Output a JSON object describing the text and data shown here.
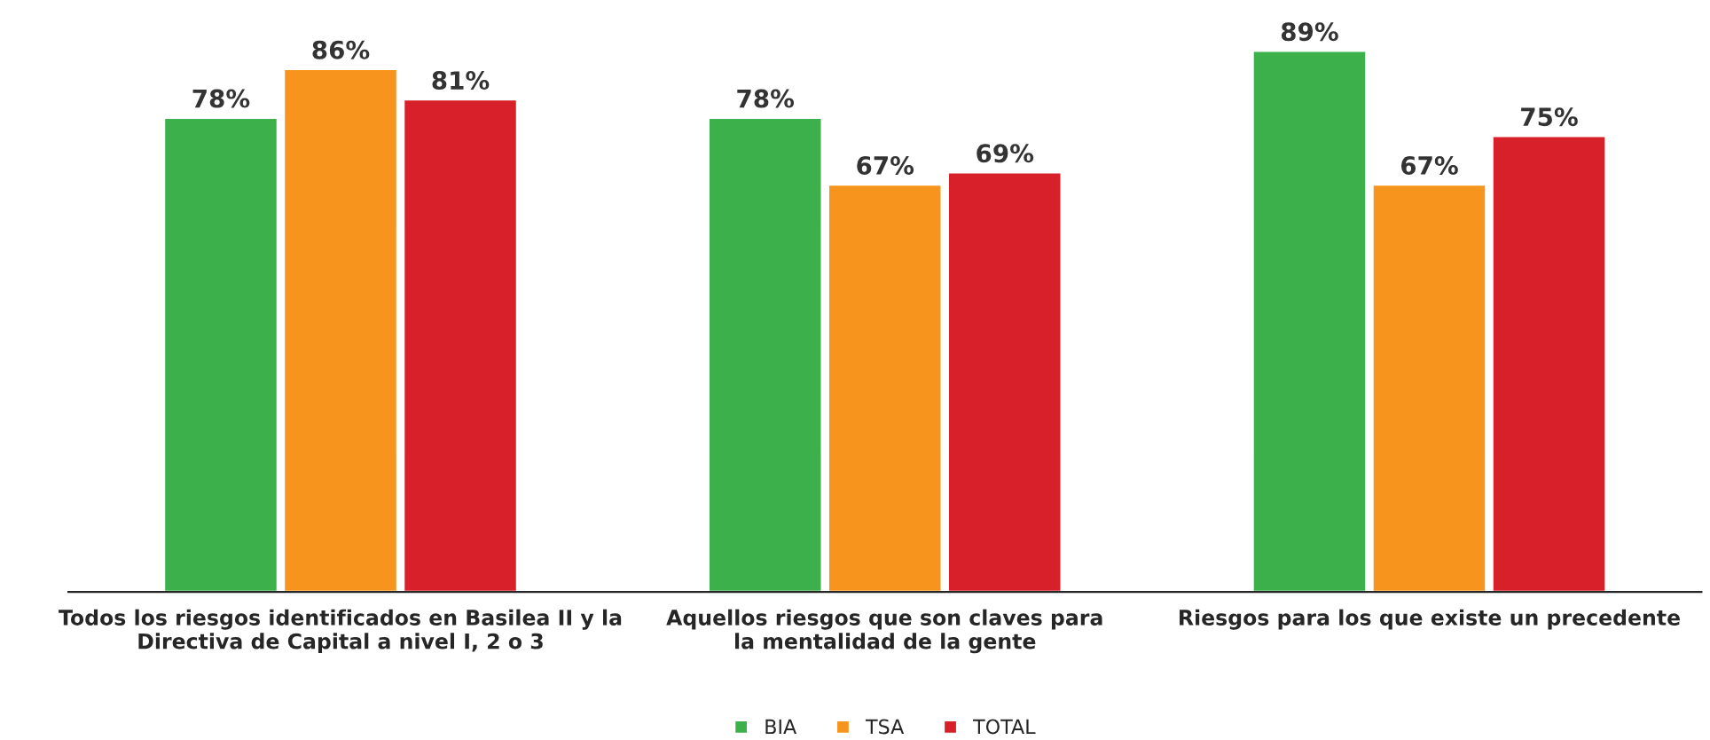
{
  "chart_data": {
    "type": "bar",
    "categories": [
      "Todos los riesgos identificados en Basilea II y la\nDirectiva de Capital a nivel I, 2 o 3",
      "Aquellos riesgos que son claves para\nla mentalidad de la gente",
      "Riesgos para los que existe un precedente"
    ],
    "series": [
      {
        "name": "BIA",
        "color": "#3cb04a",
        "values": [
          78,
          78,
          89
        ],
        "value_labels": [
          "78%",
          "78%",
          "89%"
        ]
      },
      {
        "name": "TSA",
        "color": "#f7941d",
        "values": [
          86,
          67,
          67
        ],
        "value_labels": [
          "86%",
          "67%",
          "67%"
        ]
      },
      {
        "name": "TOTAL",
        "color": "#d7202a",
        "values": [
          81,
          69,
          75
        ],
        "value_labels": [
          "81%",
          "69%",
          "75%"
        ]
      }
    ],
    "legend": "bottom",
    "grid": false
  }
}
